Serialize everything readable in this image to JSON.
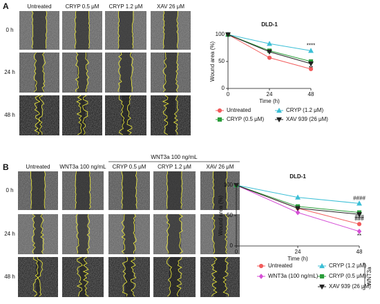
{
  "figure": {
    "panels": [
      {
        "label": "A",
        "columns": [
          "Untreated",
          "CRYP 0.5 μM",
          "CRYP 1.2 μM",
          "XAV 26 μM"
        ],
        "rows": [
          "0 h",
          "24 h",
          "48 h"
        ]
      },
      {
        "label": "B",
        "group": "WNT3a 100 ng/mL",
        "columns": [
          "Untreated",
          "WNT3a 100 ng/mL",
          "CRYP 0.5 μM",
          "CRYP 1.2 μM",
          "XAV 26 μM"
        ],
        "rows": [
          "0 h",
          "24 h",
          "48 h"
        ]
      }
    ]
  },
  "chart_data": [
    {
      "type": "line",
      "title": "DLD-1",
      "x_label": "Time (h)",
      "y_label": "Wound area (%)",
      "x": [
        0,
        24,
        48
      ],
      "xlim": [
        0,
        48
      ],
      "xticks": [
        0,
        24,
        48
      ],
      "ylim": [
        0,
        100
      ],
      "yticks": [
        0,
        50,
        100
      ],
      "series": [
        {
          "name": "Untreated",
          "color": "#f25c5c",
          "marker": "circle",
          "values": [
            100,
            57,
            36
          ]
        },
        {
          "name": "CRYP (1.2 μM)",
          "color": "#3bbfd6",
          "marker": "triangle",
          "values": [
            100,
            83,
            70
          ],
          "note": "****"
        },
        {
          "name": "CRYP (0.5 μM)",
          "color": "#2a9d3a",
          "marker": "square",
          "values": [
            100,
            70,
            50
          ],
          "note": "*"
        },
        {
          "name": "XAV 939 (26 μM)",
          "color": "#222222",
          "marker": "triangle-down",
          "values": [
            100,
            68,
            46
          ],
          "note": "**"
        }
      ]
    },
    {
      "type": "line",
      "title": "DLD-1",
      "x_label": "Time (h)",
      "y_label": "Wound area (%)",
      "x": [
        0,
        24,
        48
      ],
      "xlim": [
        0,
        48
      ],
      "xticks": [
        0,
        24,
        48
      ],
      "ylim": [
        0,
        100
      ],
      "yticks": [
        0,
        50,
        100
      ],
      "legend_group": "WNT3a",
      "series": [
        {
          "name": "Untreated",
          "color": "#f25c5c",
          "marker": "circle",
          "values": [
            100,
            62,
            36
          ]
        },
        {
          "name": "CRYP (1.2 μM)",
          "color": "#3bbfd6",
          "marker": "triangle",
          "values": [
            100,
            80,
            70
          ],
          "note": "####"
        },
        {
          "name": "WNT3a (100 ng/mL)",
          "color": "#d54fd6",
          "marker": "diamond",
          "values": [
            100,
            55,
            24
          ],
          "note": "**"
        },
        {
          "name": "CRYP (0.5 μM)",
          "color": "#2a9d3a",
          "marker": "square",
          "values": [
            100,
            65,
            55
          ],
          "note": "###"
        },
        {
          "name": "XAV 939 (26 μM)",
          "color": "#222222",
          "marker": "triangle-down",
          "values": [
            100,
            62,
            52
          ],
          "note": "###"
        }
      ]
    }
  ]
}
